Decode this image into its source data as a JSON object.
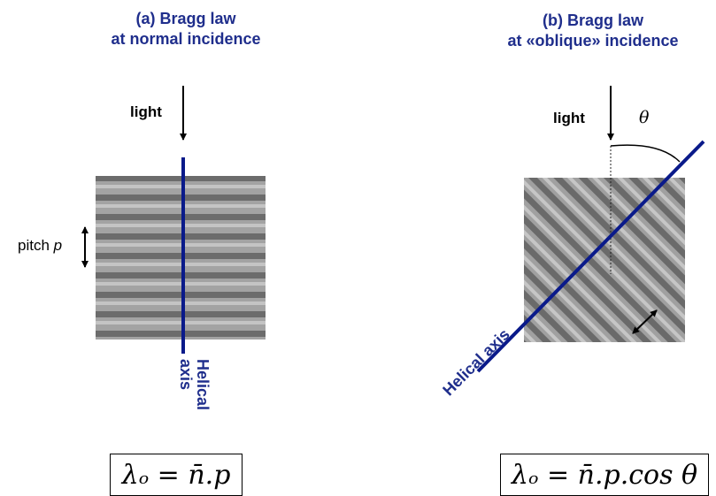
{
  "panel_a": {
    "title_line1": "(a) Bragg law",
    "title_line2": "at normal incidence",
    "light_label": "light",
    "pitch_label": "pitch",
    "pitch_symbol": "p",
    "axis_line1": "Helical",
    "axis_line2": "axis",
    "formula": "λₒ = n̄.p"
  },
  "panel_b": {
    "title_line1": "(b) Bragg law",
    "title_line2": "at «oblique» incidence",
    "light_label": "light",
    "angle_symbol": "θ",
    "axis_label": "Helical axis",
    "formula": "λₒ = n̄.p.cos θ"
  },
  "colors": {
    "title": "#1f2e8c",
    "helical_axis": "#0a1a8a",
    "texture": "#8a8a8a"
  }
}
